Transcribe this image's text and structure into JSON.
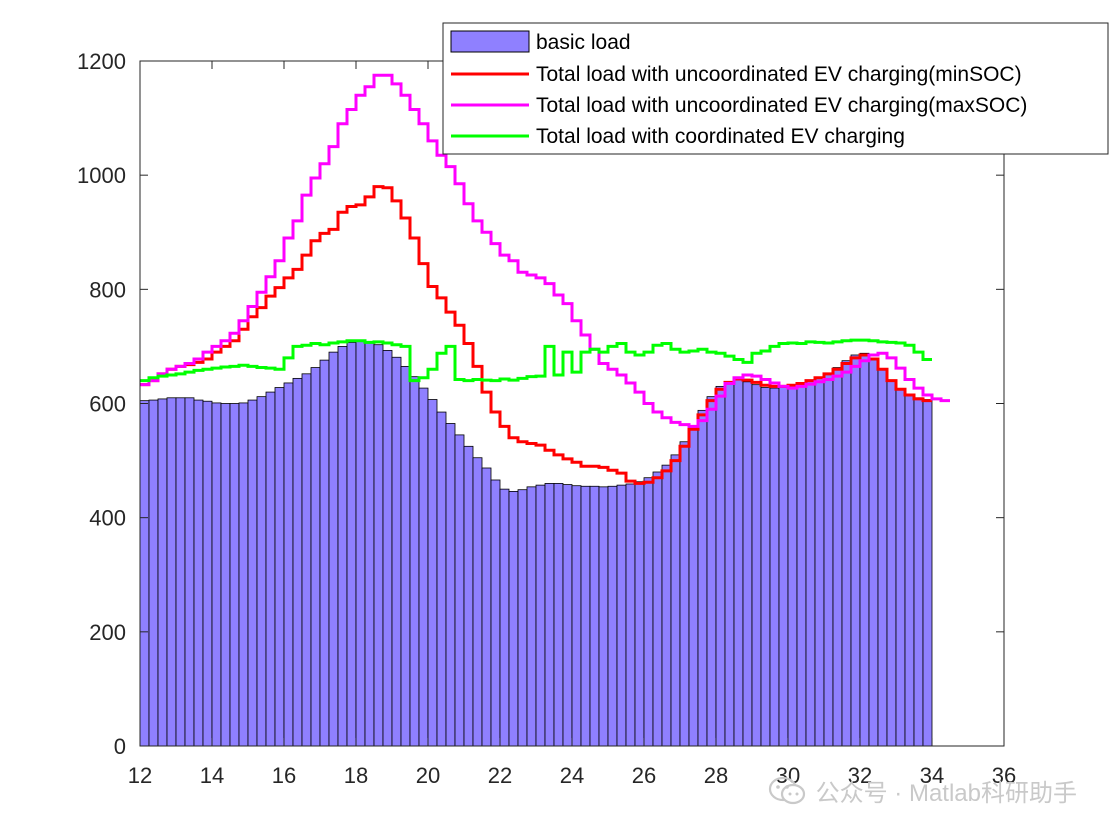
{
  "chart_data": {
    "type": "bar+line",
    "title": "",
    "xlabel": "",
    "ylabel": "",
    "xlim": [
      12,
      36
    ],
    "ylim": [
      0,
      1200
    ],
    "x_ticks": [
      12,
      14,
      16,
      18,
      20,
      22,
      24,
      26,
      28,
      30,
      32,
      34,
      36
    ],
    "y_ticks": [
      0,
      200,
      400,
      600,
      800,
      1000,
      1200
    ],
    "grid": false,
    "legend_position": "top-right",
    "bar_start": 12,
    "bar_width": 0.25,
    "series": [
      {
        "name": "basic load",
        "kind": "bar",
        "color": "#8f80ff",
        "values": [
          605,
          606,
          608,
          610,
          610,
          610,
          606,
          604,
          601,
          600,
          600,
          601,
          606,
          612,
          620,
          628,
          636,
          644,
          652,
          663,
          676,
          690,
          700,
          707,
          710,
          708,
          703,
          693,
          681,
          665,
          647,
          627,
          607,
          585,
          565,
          545,
          525,
          505,
          487,
          466,
          450,
          446,
          449,
          454,
          457,
          460,
          460,
          458,
          456,
          455,
          455,
          454,
          455,
          457,
          459,
          463,
          470,
          480,
          492,
          510,
          533,
          560,
          588,
          612,
          630,
          638,
          641,
          638,
          633,
          628,
          627,
          628,
          631,
          635,
          639,
          644,
          652,
          663,
          675,
          685,
          688,
          678,
          660,
          640,
          625,
          615,
          610,
          607
        ]
      },
      {
        "name": "Total load with uncoordinated EV charging(minSOC)",
        "kind": "line",
        "color": "#ff0000",
        "values": [
          633,
          640,
          652,
          660,
          665,
          668,
          672,
          678,
          690,
          700,
          710,
          730,
          752,
          768,
          788,
          803,
          820,
          835,
          860,
          885,
          898,
          905,
          935,
          945,
          948,
          962,
          980,
          978,
          955,
          925,
          890,
          845,
          805,
          785,
          760,
          737,
          705,
          665,
          620,
          585,
          560,
          540,
          533,
          530,
          527,
          518,
          510,
          503,
          497,
          490,
          490,
          488,
          483,
          478,
          464,
          460,
          462,
          470,
          482,
          500,
          525,
          555,
          580,
          605,
          625,
          637,
          643,
          641,
          637,
          632,
          630,
          630,
          632,
          635,
          640,
          645,
          652,
          660,
          670,
          680,
          685,
          678,
          660,
          640,
          625,
          615,
          608,
          605
        ]
      },
      {
        "name": "Total load with uncoordinated EV charging(maxSOC)",
        "kind": "line",
        "color": "#ff00ff",
        "values": [
          633,
          640,
          652,
          660,
          665,
          670,
          678,
          690,
          700,
          710,
          723,
          745,
          770,
          795,
          822,
          850,
          890,
          920,
          965,
          995,
          1020,
          1050,
          1090,
          1115,
          1140,
          1155,
          1175,
          1175,
          1160,
          1140,
          1115,
          1090,
          1060,
          1035,
          1015,
          985,
          950,
          920,
          900,
          880,
          860,
          850,
          830,
          825,
          820,
          810,
          790,
          775,
          745,
          720,
          695,
          670,
          660,
          650,
          636,
          620,
          600,
          585,
          575,
          567,
          563,
          560,
          570,
          590,
          613,
          635,
          645,
          650,
          648,
          642,
          636,
          630,
          627,
          630,
          634,
          638,
          642,
          648,
          655,
          665,
          675,
          685,
          688,
          680,
          662,
          642,
          627,
          615,
          608,
          605
        ]
      },
      {
        "name": "Total load with coordinated EV charging",
        "kind": "line",
        "color": "#00ff00",
        "values": [
          640,
          645,
          648,
          650,
          652,
          655,
          658,
          660,
          662,
          664,
          665,
          667,
          665,
          663,
          662,
          660,
          680,
          700,
          702,
          705,
          703,
          706,
          708,
          710,
          710,
          707,
          708,
          706,
          703,
          700,
          640,
          645,
          660,
          688,
          700,
          642,
          640,
          642,
          641,
          640,
          643,
          641,
          644,
          647,
          648,
          700,
          650,
          690,
          655,
          690,
          695,
          690,
          700,
          705,
          690,
          685,
          690,
          702,
          705,
          695,
          690,
          692,
          695,
          690,
          688,
          683,
          677,
          672,
          688,
          692,
          700,
          705,
          706,
          705,
          708,
          707,
          706,
          708,
          710,
          711,
          711,
          710,
          708,
          707,
          706,
          702,
          690,
          677
        ]
      }
    ]
  },
  "watermark": {
    "text": "公众号 · Matlab科研助手"
  }
}
